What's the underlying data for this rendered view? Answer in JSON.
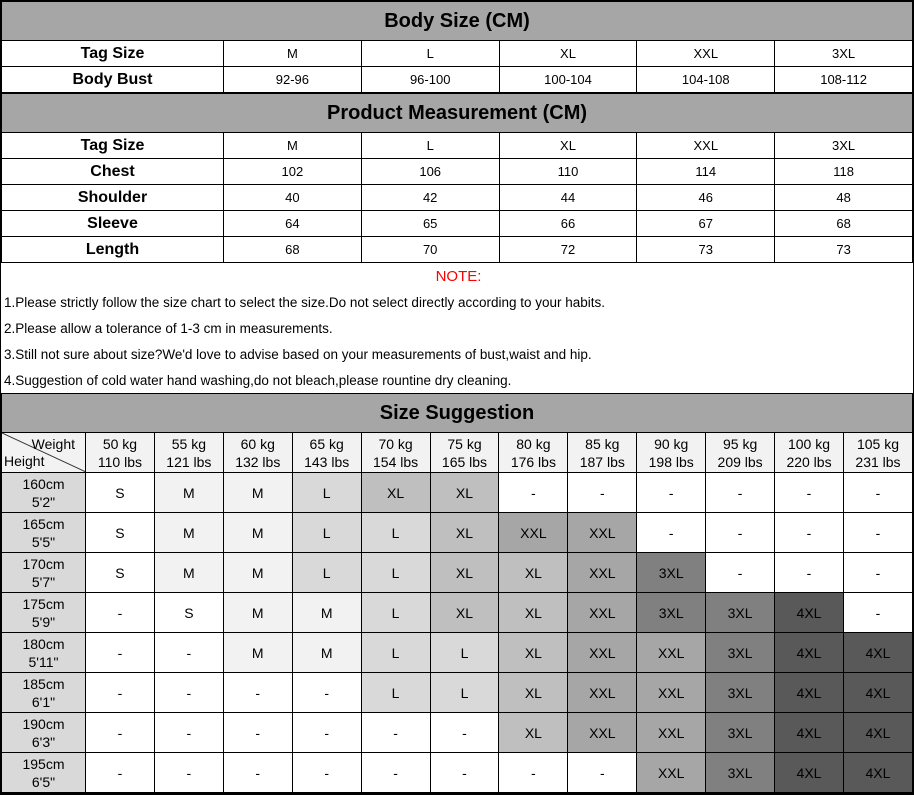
{
  "body_size": {
    "title": "Body Size (CM)",
    "sizes": [
      "M",
      "L",
      "XL",
      "XXL",
      "3XL"
    ],
    "rows": [
      {
        "label": "Tag Size",
        "values": [
          "M",
          "L",
          "XL",
          "XXL",
          "3XL"
        ]
      },
      {
        "label": "Body Bust",
        "values": [
          "92-96",
          "96-100",
          "100-104",
          "104-108",
          "108-112"
        ]
      }
    ]
  },
  "product": {
    "title": "Product Measurement (CM)",
    "rows": [
      {
        "label": "Tag Size",
        "values": [
          "M",
          "L",
          "XL",
          "XXL",
          "3XL"
        ]
      },
      {
        "label": "Chest",
        "values": [
          "102",
          "106",
          "110",
          "114",
          "118"
        ]
      },
      {
        "label": "Shoulder",
        "values": [
          "40",
          "42",
          "44",
          "46",
          "48"
        ]
      },
      {
        "label": "Sleeve",
        "values": [
          "64",
          "65",
          "66",
          "67",
          "68"
        ]
      },
      {
        "label": "Length",
        "values": [
          "68",
          "70",
          "72",
          "73",
          "73"
        ]
      }
    ]
  },
  "note": {
    "title": "NOTE:",
    "lines": [
      "1.Please strictly follow the size chart to select the size.Do not select directly according to your habits.",
      "2.Please allow a tolerance of 1-3 cm in measurements.",
      "3.Still not sure about size?We'd love to advise based on your measurements of bust,waist and hip.",
      "4.Suggestion of cold water hand washing,do not bleach,please rountine dry cleaning."
    ]
  },
  "suggestion": {
    "title": "Size Suggestion",
    "corner_weight": "Weight",
    "corner_height": "Height",
    "weights": [
      [
        "50 kg",
        "110 lbs"
      ],
      [
        "55 kg",
        "121 lbs"
      ],
      [
        "60 kg",
        "132 lbs"
      ],
      [
        "65 kg",
        "143 lbs"
      ],
      [
        "70 kg",
        "154 lbs"
      ],
      [
        "75 kg",
        "165 lbs"
      ],
      [
        "80 kg",
        "176 lbs"
      ],
      [
        "85 kg",
        "187 lbs"
      ],
      [
        "90 kg",
        "198 lbs"
      ],
      [
        "95 kg",
        "209 lbs"
      ],
      [
        "100 kg",
        "220 lbs"
      ],
      [
        "105 kg",
        "231 lbs"
      ]
    ],
    "rows": [
      {
        "height": [
          "160cm",
          "5'2\""
        ],
        "sizes": [
          "S",
          "M",
          "M",
          "L",
          "XL",
          "XL",
          "-",
          "-",
          "-",
          "-",
          "-",
          "-"
        ]
      },
      {
        "height": [
          "165cm",
          "5'5\""
        ],
        "sizes": [
          "S",
          "M",
          "M",
          "L",
          "L",
          "XL",
          "XXL",
          "XXL",
          "-",
          "-",
          "-",
          "-"
        ]
      },
      {
        "height": [
          "170cm",
          "5'7\""
        ],
        "sizes": [
          "S",
          "M",
          "M",
          "L",
          "L",
          "XL",
          "XL",
          "XXL",
          "3XL",
          "-",
          "-",
          "-"
        ]
      },
      {
        "height": [
          "175cm",
          "5'9\""
        ],
        "sizes": [
          "-",
          "S",
          "M",
          "M",
          "L",
          "XL",
          "XL",
          "XXL",
          "3XL",
          "3XL",
          "4XL",
          "-"
        ]
      },
      {
        "height": [
          "180cm",
          "5'11\""
        ],
        "sizes": [
          "-",
          "-",
          "M",
          "M",
          "L",
          "L",
          "XL",
          "XXL",
          "XXL",
          "3XL",
          "4XL",
          "4XL"
        ]
      },
      {
        "height": [
          "185cm",
          "6'1\""
        ],
        "sizes": [
          "-",
          "-",
          "-",
          "-",
          "L",
          "L",
          "XL",
          "XXL",
          "XXL",
          "3XL",
          "4XL",
          "4XL"
        ]
      },
      {
        "height": [
          "190cm",
          "6'3\""
        ],
        "sizes": [
          "-",
          "-",
          "-",
          "-",
          "-",
          "-",
          "XL",
          "XXL",
          "XXL",
          "3XL",
          "4XL",
          "4XL"
        ]
      },
      {
        "height": [
          "195cm",
          "6'5\""
        ],
        "sizes": [
          "-",
          "-",
          "-",
          "-",
          "-",
          "-",
          "-",
          "-",
          "XXL",
          "3XL",
          "4XL",
          "4XL"
        ]
      }
    ]
  },
  "colors": {
    "S": "#ffffff",
    "M": "#f2f2f2",
    "L": "#d9d9d9",
    "XL": "#bfbfbf",
    "XXL": "#a6a6a6",
    "3XL": "#808080",
    "4XL": "#595959",
    "-": "#ffffff",
    "title_bg": "#a6a6a6",
    "note": "#ff0000"
  }
}
